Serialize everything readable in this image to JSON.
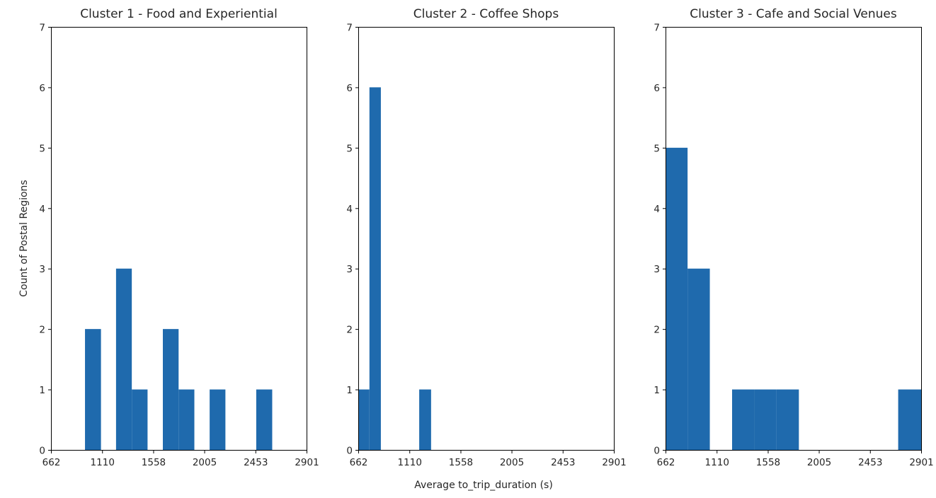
{
  "figure": {
    "ylabel": "Count of Postal Regions",
    "xlabel": "Average to_trip_duration (s)"
  },
  "chart_data": [
    {
      "type": "bar",
      "title": "Cluster 1 - Food and Experiential",
      "xlim": [
        662,
        2901
      ],
      "ylim": [
        0,
        7
      ],
      "xticks": [
        662,
        1110,
        1558,
        2005,
        2453,
        2901
      ],
      "yticks": [
        0,
        1,
        2,
        3,
        4,
        5,
        6,
        7
      ],
      "color": "#1f6aad",
      "bins": [
        {
          "x0": 960,
          "x1": 1100,
          "count": 2
        },
        {
          "x0": 1232,
          "x1": 1370,
          "count": 3
        },
        {
          "x0": 1370,
          "x1": 1508,
          "count": 1
        },
        {
          "x0": 1642,
          "x1": 1780,
          "count": 2
        },
        {
          "x0": 1780,
          "x1": 1918,
          "count": 1
        },
        {
          "x0": 2052,
          "x1": 2190,
          "count": 1
        },
        {
          "x0": 2460,
          "x1": 2600,
          "count": 1
        }
      ]
    },
    {
      "type": "bar",
      "title": "Cluster 2 - Coffee Shops",
      "xlim": [
        662,
        2901
      ],
      "ylim": [
        0,
        7
      ],
      "xticks": [
        662,
        1110,
        1558,
        2005,
        2453,
        2901
      ],
      "yticks": [
        0,
        1,
        2,
        3,
        4,
        5,
        6,
        7
      ],
      "color": "#1f6aad",
      "bins": [
        {
          "x0": 662,
          "x1": 760,
          "count": 1
        },
        {
          "x0": 760,
          "x1": 860,
          "count": 6
        },
        {
          "x0": 1196,
          "x1": 1300,
          "count": 1
        }
      ]
    },
    {
      "type": "bar",
      "title": "Cluster 3 - Cafe and Social Venues",
      "xlim": [
        662,
        2901
      ],
      "ylim": [
        0,
        7
      ],
      "xticks": [
        662,
        1110,
        1558,
        2005,
        2453,
        2901
      ],
      "yticks": [
        0,
        1,
        2,
        3,
        4,
        5,
        6,
        7
      ],
      "color": "#1f6aad",
      "bins": [
        {
          "x0": 662,
          "x1": 855,
          "count": 5
        },
        {
          "x0": 855,
          "x1": 1050,
          "count": 3
        },
        {
          "x0": 1245,
          "x1": 1440,
          "count": 1
        },
        {
          "x0": 1440,
          "x1": 1635,
          "count": 1
        },
        {
          "x0": 1635,
          "x1": 1830,
          "count": 1
        },
        {
          "x0": 2700,
          "x1": 2901,
          "count": 1
        }
      ]
    }
  ]
}
